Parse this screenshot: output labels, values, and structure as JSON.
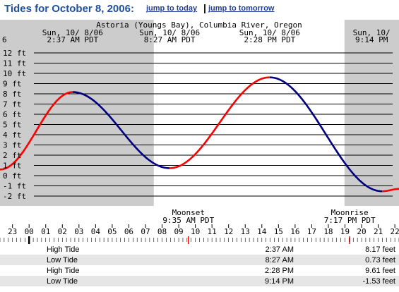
{
  "header": {
    "title": "Tides for October 8, 2006:",
    "link_today": "jump to today",
    "separator": "|",
    "link_tomorrow": "jump to tomorrow"
  },
  "chart_data": {
    "type": "line",
    "station": "Astoria (Youngs Bay), Columbia River, Oregon",
    "y_unit": "ft",
    "ylim": [
      -2.5,
      12.5
    ],
    "y_ticks": [
      12,
      11,
      10,
      9,
      8,
      7,
      6,
      5,
      4,
      3,
      2,
      1,
      0,
      -1,
      -2
    ],
    "y_tick_labels": [
      "12 ft",
      "11 ft",
      "10 ft",
      "9 ft",
      "8 ft",
      "7 ft",
      "6 ft",
      "5 ft",
      "4 ft",
      "3 ft",
      "2 ft",
      "1 ft",
      "0 ft",
      "-1 ft",
      "-2 ft"
    ],
    "x_start_hour": -1.75,
    "x_end_hour": 22.25,
    "x_tick_labels": [
      {
        "hour": -2,
        "label": "22"
      },
      {
        "hour": -1,
        "label": "23"
      },
      {
        "hour": 0,
        "label": "00"
      },
      {
        "hour": 1,
        "label": "01"
      },
      {
        "hour": 2,
        "label": "02"
      },
      {
        "hour": 3,
        "label": "03"
      },
      {
        "hour": 4,
        "label": "04"
      },
      {
        "hour": 5,
        "label": "05"
      },
      {
        "hour": 6,
        "label": "06"
      },
      {
        "hour": 7,
        "label": "07"
      },
      {
        "hour": 8,
        "label": "08"
      },
      {
        "hour": 9,
        "label": "09"
      },
      {
        "hour": 10,
        "label": "10"
      },
      {
        "hour": 11,
        "label": "11"
      },
      {
        "hour": 12,
        "label": "12"
      },
      {
        "hour": 13,
        "label": "13"
      },
      {
        "hour": 14,
        "label": "14"
      },
      {
        "hour": 15,
        "label": "15"
      },
      {
        "hour": 16,
        "label": "16"
      },
      {
        "hour": 17,
        "label": "17"
      },
      {
        "hour": 18,
        "label": "18"
      },
      {
        "hour": 19,
        "label": "19"
      },
      {
        "hour": 20,
        "label": "20"
      },
      {
        "hour": 21,
        "label": "21"
      },
      {
        "hour": 22,
        "label": "22"
      }
    ],
    "shaded_periods": [
      {
        "start": -1.75,
        "end": 7.5
      },
      {
        "start": 18.97,
        "end": 22.25
      }
    ],
    "extremes": [
      {
        "hour": -1.75,
        "height": 0.6
      },
      {
        "hour": 2.617,
        "height": 8.17,
        "type": "high"
      },
      {
        "hour": 8.45,
        "height": 0.73,
        "type": "low"
      },
      {
        "hour": 14.467,
        "height": 9.61,
        "type": "high"
      },
      {
        "hour": 21.233,
        "height": -1.53,
        "type": "low"
      },
      {
        "hour": 22.25,
        "height": -1.3
      }
    ],
    "series_colors": {
      "rising": "#ff0000",
      "falling": "#000080",
      "grid": "#000000",
      "shade": "#cccccc"
    },
    "top_labels": [
      {
        "hour": -1.75,
        "lines": [
          "",
          "6"
        ]
      },
      {
        "hour": 2.617,
        "lines": [
          "Sun, 10/ 8/06",
          "2:37 AM PDT"
        ]
      },
      {
        "hour": 8.45,
        "lines": [
          "Sun, 10/ 8/06",
          "8:27 AM PDT"
        ]
      },
      {
        "hour": 14.467,
        "lines": [
          "Sun, 10/ 8/06",
          "2:28 PM PDT"
        ]
      },
      {
        "hour": 20.6,
        "lines": [
          "Sun, 10/",
          "9:14 PM"
        ]
      }
    ],
    "moon_events": [
      {
        "hour": 9.583,
        "lines": [
          "Moonset",
          "9:35 AM PDT"
        ]
      },
      {
        "hour": 19.283,
        "lines": [
          "Moonrise",
          "7:17 PM PDT"
        ]
      }
    ]
  },
  "tide_table": [
    {
      "type": "High Tide",
      "time": "2:37 AM",
      "height": "8.17 feet"
    },
    {
      "type": "Low Tide",
      "time": "8:27 AM",
      "height": "0.73 feet"
    },
    {
      "type": "High Tide",
      "time": "2:28 PM",
      "height": "9.61 feet"
    },
    {
      "type": "Low Tide",
      "time": "9:14 PM",
      "height": "-1.53 feet"
    }
  ]
}
